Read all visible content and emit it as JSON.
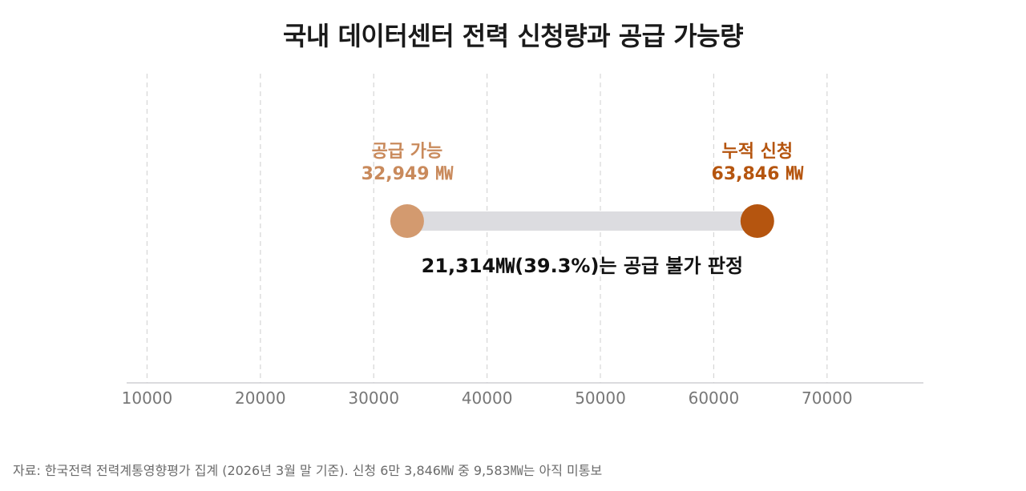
{
  "title": "국내 데이터센터 전력 신청량과 공급 가능량",
  "source": "자료: 한국전력 전력계통영향평가 집계 (2026년 3월 말 기준). 신청 6만 3,846㎿ 중 9,583㎿는 아직 미통보",
  "colors": {
    "supply": "#d39a6f",
    "supply_text": "#c98a5c",
    "request": "#b5550f",
    "request_text": "#b5550f",
    "bar": "#dcdce0",
    "grid": "#d6d6d6",
    "axis_text": "#777777",
    "note_text": "#111111"
  },
  "chart_data": {
    "type": "dumbbell",
    "xlim": [
      8200,
      78500
    ],
    "xticks": [
      10000,
      20000,
      30000,
      40000,
      50000,
      60000,
      70000
    ],
    "xtick_labels": [
      "10000",
      "20000",
      "30000",
      "40000",
      "50000",
      "60000",
      "70000"
    ],
    "grid": true,
    "points": [
      {
        "label": "공급 가능",
        "value": 32949,
        "value_label": "32,949 ㎿"
      },
      {
        "label": "누적 신청",
        "value": 63846,
        "value_label": "63,846 ㎿"
      }
    ],
    "annotation": "21,314㎿(39.3%)는 공급 불가 판정"
  }
}
